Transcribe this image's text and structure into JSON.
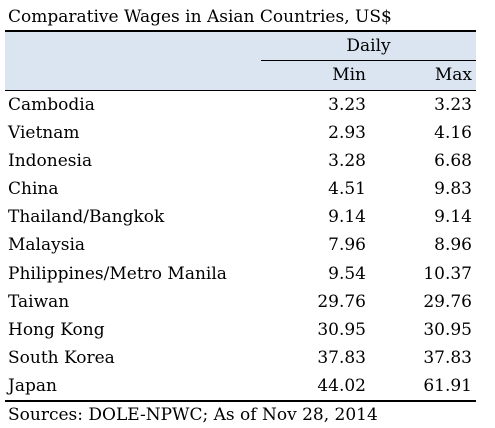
{
  "chart_data": {
    "type": "table",
    "title": "Comparative Wages in Asian Countries, US$",
    "group_header": "Daily",
    "columns": [
      "Min",
      "Max"
    ],
    "rows": [
      {
        "country": "Cambodia",
        "min": "3.23",
        "max": "3.23"
      },
      {
        "country": "Vietnam",
        "min": "2.93",
        "max": "4.16"
      },
      {
        "country": "Indonesia",
        "min": "3.28",
        "max": "6.68"
      },
      {
        "country": "China",
        "min": "4.51",
        "max": "9.83"
      },
      {
        "country": "Thailand/Bangkok",
        "min": "9.14",
        "max": "9.14"
      },
      {
        "country": "Malaysia",
        "min": "7.96",
        "max": "8.96"
      },
      {
        "country": "Philippines/Metro Manila",
        "min": "9.54",
        "max": "10.37"
      },
      {
        "country": "Taiwan",
        "min": "29.76",
        "max": "29.76"
      },
      {
        "country": "Hong Kong",
        "min": "30.95",
        "max": "30.95"
      },
      {
        "country": "South Korea",
        "min": "37.83",
        "max": "37.83"
      },
      {
        "country": "Japan",
        "min": "44.02",
        "max": "61.91"
      }
    ],
    "source": "Sources: DOLE-NPWC; As of Nov 28, 2014",
    "header_color": "#dbe5f1"
  }
}
